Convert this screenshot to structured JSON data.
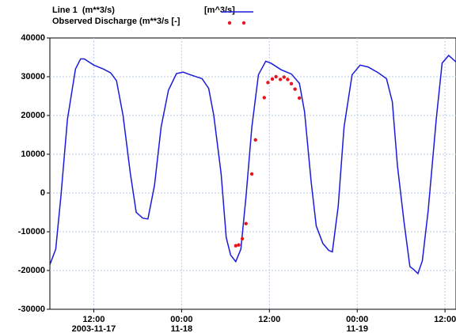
{
  "chart_data": {
    "type": "line",
    "series": [
      {
        "name": "Line 1  (m**3/s)",
        "unit": "[m^3/s]",
        "color": "#1a1adc",
        "style": "line",
        "x": [
          "2003-11-17 06:00",
          "2003-11-17 06:48",
          "2003-11-17 07:30",
          "2003-11-17 08:24",
          "2003-11-17 09:30",
          "2003-11-17 10:12",
          "2003-11-17 10:42",
          "2003-11-17 12:00",
          "2003-11-17 13:18",
          "2003-11-17 14:18",
          "2003-11-17 15:06",
          "2003-11-17 16:00",
          "2003-11-17 17:00",
          "2003-11-17 17:48",
          "2003-11-17 18:42",
          "2003-11-17 19:24",
          "2003-11-17 20:18",
          "2003-11-17 21:12",
          "2003-11-17 22:12",
          "2003-11-17 23:18",
          "2003-11-18 00:12",
          "2003-11-18 01:12",
          "2003-11-18 02:48",
          "2003-11-18 03:42",
          "2003-11-18 04:24",
          "2003-11-18 05:24",
          "2003-11-18 06:06",
          "2003-11-18 06:42",
          "2003-11-18 07:24",
          "2003-11-18 08:06",
          "2003-11-18 08:48",
          "2003-11-18 09:36",
          "2003-11-18 10:30",
          "2003-11-18 11:30",
          "2003-11-18 12:12",
          "2003-11-18 13:36",
          "2003-11-18 15:00",
          "2003-11-18 16:06",
          "2003-11-18 16:48",
          "2003-11-18 17:42",
          "2003-11-18 18:24",
          "2003-11-18 19:18",
          "2003-11-18 20:06",
          "2003-11-18 20:36",
          "2003-11-18 21:24",
          "2003-11-18 22:12",
          "2003-11-18 23:18",
          "2003-11-19 00:24",
          "2003-11-19 01:30",
          "2003-11-19 02:54",
          "2003-11-19 04:00",
          "2003-11-19 04:48",
          "2003-11-19 05:30",
          "2003-11-19 06:24",
          "2003-11-19 07:12",
          "2003-11-19 07:42",
          "2003-11-19 08:18",
          "2003-11-19 08:54",
          "2003-11-19 09:42",
          "2003-11-19 10:48",
          "2003-11-19 11:36",
          "2003-11-19 12:30",
          "2003-11-19 13:30"
        ],
        "values": [
          -18500,
          -14500,
          -1000,
          19000,
          32000,
          34600,
          34600,
          33000,
          32000,
          31000,
          29000,
          20000,
          5000,
          -5000,
          -6500,
          -6700,
          2000,
          17000,
          26500,
          30800,
          31200,
          30500,
          29500,
          27000,
          20000,
          5000,
          -11500,
          -16000,
          -17700,
          -14500,
          -1000,
          17000,
          30500,
          34000,
          33500,
          31800,
          30700,
          28300,
          21000,
          3000,
          -8500,
          -13000,
          -14800,
          -15200,
          -3500,
          17000,
          30500,
          33000,
          32500,
          31000,
          29500,
          23500,
          7000,
          -7500,
          -19000,
          -19700,
          -20800,
          -17500,
          -4500,
          19000,
          33500,
          35500,
          33800
        ]
      },
      {
        "name": "Observed Discharge (m**3/s [-]",
        "color": "#e8141e",
        "style": "points",
        "x": [
          "2003-11-18 07:24",
          "2003-11-18 07:48",
          "2003-11-18 08:18",
          "2003-11-18 08:48",
          "2003-11-18 09:36",
          "2003-11-18 10:06",
          "2003-11-18 11:18",
          "2003-11-18 11:48",
          "2003-11-18 12:24",
          "2003-11-18 12:54",
          "2003-11-18 13:30",
          "2003-11-18 14:00",
          "2003-11-18 14:30",
          "2003-11-18 15:00",
          "2003-11-18 15:30",
          "2003-11-18 16:06"
        ],
        "values": [
          -13600,
          -13400,
          -11800,
          -7900,
          4900,
          13700,
          24600,
          28500,
          29400,
          30000,
          29300,
          29900,
          29300,
          28200,
          26800,
          24500
        ]
      }
    ],
    "xlim": [
      "2003-11-17 06:00",
      "2003-11-19 13:30"
    ],
    "xticks": [
      {
        "value": "2003-11-17 12:00",
        "label": [
          "12:00",
          "2003-11-17"
        ]
      },
      {
        "value": "2003-11-18 00:00",
        "label": [
          "00:00",
          "11-18"
        ]
      },
      {
        "value": "2003-11-18 12:00",
        "label": [
          "12:00",
          ""
        ]
      },
      {
        "value": "2003-11-19 00:00",
        "label": [
          "00:00",
          "11-19"
        ]
      },
      {
        "value": "2003-11-19 12:00",
        "label": [
          "12:00",
          ""
        ]
      }
    ],
    "ylim": [
      -30000,
      40000
    ],
    "yticks": [
      -30000,
      -20000,
      -10000,
      0,
      10000,
      20000,
      30000,
      40000
    ],
    "grid": true,
    "legend": "top-left"
  }
}
